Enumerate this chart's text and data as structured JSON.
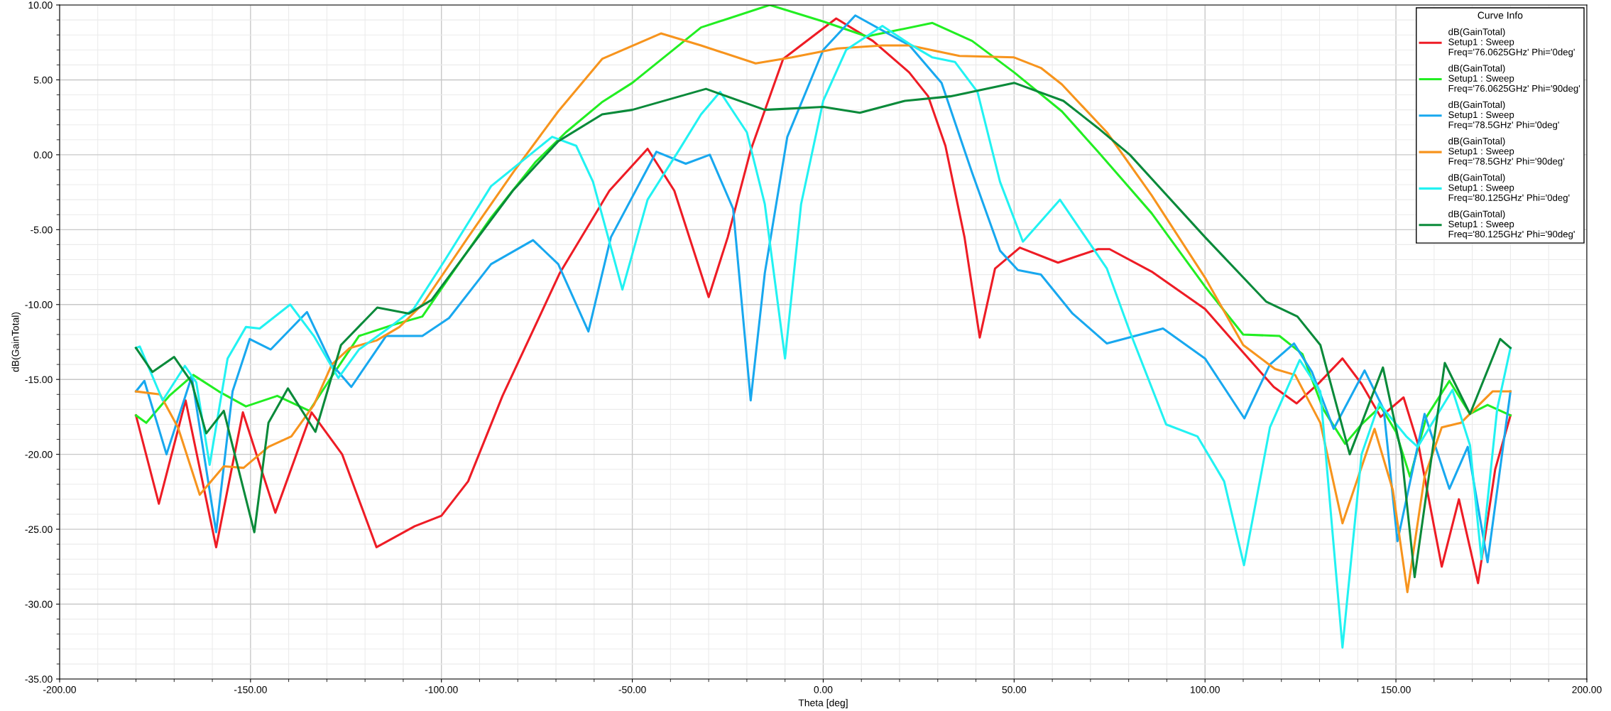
{
  "chart_data": {
    "type": "line",
    "xlabel": "Theta [deg]",
    "ylabel": "dB(GainTotal)",
    "legend_title": "Curve Info",
    "legend": "top right",
    "grid": true,
    "marker": "none",
    "line_style": "solid",
    "xlim": [
      -200,
      200
    ],
    "xticks": [
      {
        "value": -200,
        "label": "-200.00"
      },
      {
        "value": -150,
        "label": "-150.00"
      },
      {
        "value": -100,
        "label": "-100.00"
      },
      {
        "value": -50,
        "label": "-50.00"
      },
      {
        "value": 0,
        "label": "0.00"
      },
      {
        "value": 50,
        "label": "50.00"
      },
      {
        "value": 100,
        "label": "100.00"
      },
      {
        "value": 150,
        "label": "150.00"
      },
      {
        "value": 200,
        "label": "200.00"
      }
    ],
    "ylim": [
      -35,
      10
    ],
    "yticks": [
      {
        "value": -35,
        "label": "-35.00"
      },
      {
        "value": -30,
        "label": "-30.00"
      },
      {
        "value": -25,
        "label": "-25.00"
      },
      {
        "value": -20,
        "label": "-20.00"
      },
      {
        "value": -15,
        "label": "-15.00"
      },
      {
        "value": -10,
        "label": "-10.00"
      },
      {
        "value": -5,
        "label": "-5.00"
      },
      {
        "value": 0,
        "label": "0.00"
      },
      {
        "value": 5,
        "label": "5.00"
      },
      {
        "value": 10,
        "label": "10.00"
      }
    ],
    "series": [
      {
        "name": "dB(GainTotal)\nSetup1 : Sweep\nFreq='76.0625GHz' Phi='0deg'",
        "color": "#ee1c25",
        "x": [
          -180,
          -174,
          -167,
          -159,
          -152,
          -143.5,
          -134,
          -126,
          -117,
          -107,
          -100,
          -93,
          -84,
          -69,
          -56,
          -46,
          -39,
          -30,
          -25,
          -19,
          -10.5,
          3.4,
          13,
          22.5,
          27.5,
          32,
          37,
          41,
          45,
          51.5,
          61.5,
          72,
          75,
          86,
          100,
          110,
          118,
          124,
          130,
          136,
          141,
          146,
          152,
          156,
          162,
          166.5,
          171.5,
          176,
          180
        ],
        "values": [
          -17.4,
          -23.3,
          -16.4,
          -26.2,
          -17.2,
          -23.9,
          -17.2,
          -20,
          -26.2,
          -24.8,
          -24.1,
          -21.8,
          -16.1,
          -7.9,
          -2.4,
          0.4,
          -2.4,
          -9.5,
          -5.5,
          0.3,
          6.4,
          9.1,
          7.6,
          5.5,
          3.9,
          0.6,
          -5.5,
          -12.2,
          -7.6,
          -6.2,
          -7.2,
          -6.3,
          -6.3,
          -7.8,
          -10.3,
          -13.2,
          -15.5,
          -16.6,
          -15.2,
          -13.6,
          -15.3,
          -17.5,
          -16.2,
          -19.5,
          -27.5,
          -23,
          -28.6,
          -21,
          -17.4
        ]
      },
      {
        "name": "dB(GainTotal)\nSetup1 : Sweep\nFreq='76.0625GHz' Phi='90deg'",
        "color": "#22ee22",
        "x": [
          -180,
          -177.3,
          -171.3,
          -165,
          -158.3,
          -151.2,
          -143,
          -134.6,
          -128.7,
          -121.6,
          -112,
          -105,
          -98,
          -87,
          -75.4,
          -67.4,
          -58,
          -50,
          -32,
          -14,
          0,
          11.4,
          28.6,
          39,
          50,
          62.5,
          72,
          86,
          100,
          110,
          119.5,
          125.5,
          131,
          136.7,
          141,
          146,
          150,
          153.7,
          158,
          164,
          169.4,
          174,
          180
        ],
        "values": [
          -17.4,
          -17.9,
          -16.1,
          -14.7,
          -15.8,
          -16.8,
          -16.1,
          -17.1,
          -14.8,
          -12.1,
          -11.3,
          -10.8,
          -8.2,
          -4.2,
          -0.5,
          1.5,
          3.5,
          4.8,
          8.5,
          10,
          8.9,
          7.9,
          8.8,
          7.6,
          5.5,
          2.9,
          0.2,
          -3.9,
          -8.8,
          -12,
          -12.1,
          -13.3,
          -17,
          -19.3,
          -18,
          -16.8,
          -18.5,
          -21.5,
          -17.5,
          -15.1,
          -17.3,
          -16.7,
          -17.4
        ]
      },
      {
        "name": "dB(GainTotal)\nSetup1 : Sweep\nFreq='78.5GHz' Phi='0deg'",
        "color": "#18a8ef",
        "x": [
          -180,
          -177.8,
          -172,
          -165.4,
          -159,
          -154.7,
          -150.2,
          -144.7,
          -135.2,
          -128.7,
          -123.6,
          -114.5,
          -105,
          -98,
          -87,
          -76,
          -69.4,
          -61.5,
          -55.6,
          -43.7,
          -36,
          -29.7,
          -23.6,
          -19,
          -15.3,
          -9.4,
          0,
          8.4,
          22.6,
          31,
          39,
          46.3,
          51,
          57,
          65.3,
          74.3,
          89,
          100,
          110.3,
          117,
          123.3,
          128,
          133.7,
          141.8,
          146.8,
          150.4,
          157.5,
          164,
          168.8,
          174,
          180
        ],
        "values": [
          -15.8,
          -15.1,
          -20,
          -14.8,
          -25.2,
          -15.8,
          -12.3,
          -13,
          -10.5,
          -14,
          -15.5,
          -12.1,
          -12.1,
          -10.9,
          -7.3,
          -5.7,
          -7.3,
          -11.8,
          -5.5,
          0.2,
          -0.6,
          0,
          -3.6,
          -16.4,
          -7.9,
          1.2,
          7,
          9.3,
          7.3,
          4.8,
          -1.2,
          -6.4,
          -7.7,
          -8,
          -10.6,
          -12.6,
          -11.6,
          -13.6,
          -17.6,
          -14,
          -12.6,
          -14.5,
          -18.3,
          -14.4,
          -17,
          -25.8,
          -17.3,
          -22.3,
          -19.5,
          -27.2,
          -15.8
        ]
      },
      {
        "name": "dB(GainTotal)\nSetup1 : Sweep\nFreq='78.5GHz' Phi='90deg'",
        "color": "#f7941d",
        "x": [
          -180,
          -173.7,
          -169,
          -163.3,
          -157,
          -151.8,
          -145.3,
          -139.3,
          -133.4,
          -128.7,
          -124,
          -117,
          -111,
          -105,
          -93,
          -81,
          -69.4,
          -57.9,
          -42.5,
          -32,
          -17.7,
          -8.2,
          3.7,
          15.5,
          22.6,
          35.7,
          50,
          57,
          62.5,
          74.3,
          86,
          100,
          110,
          118.3,
          123.6,
          130.2,
          136,
          144.4,
          149.2,
          153,
          157.5,
          162,
          167,
          175.3,
          180
        ],
        "values": [
          -15.8,
          -16,
          -18.2,
          -22.7,
          -20.8,
          -20.9,
          -19.5,
          -18.8,
          -16.7,
          -14,
          -12.9,
          -12.4,
          -11.5,
          -10,
          -5.5,
          -1.1,
          2.9,
          6.4,
          8.1,
          7.3,
          6.1,
          6.5,
          7.1,
          7.3,
          7.3,
          6.6,
          6.5,
          5.8,
          4.7,
          1.5,
          -2.7,
          -8.2,
          -12.7,
          -14.3,
          -14.7,
          -17.9,
          -24.6,
          -18.3,
          -22.4,
          -29.2,
          -21.5,
          -18.2,
          -17.9,
          -15.8,
          -15.8
        ]
      },
      {
        "name": "dB(GainTotal)\nSetup1 : Sweep\nFreq='80.125GHz' Phi='0deg'",
        "color": "#22f2f2",
        "x": [
          -180,
          -179,
          -173,
          -167.2,
          -164.2,
          -160.7,
          -156,
          -151.2,
          -147.6,
          -139.6,
          -133.4,
          -127,
          -121.6,
          -114.5,
          -107.3,
          -99,
          -87,
          -71,
          -64.7,
          -60.3,
          -52.6,
          -46,
          -37.8,
          -32,
          -27,
          -20,
          -15.3,
          -10,
          -5.8,
          0,
          6,
          15.5,
          22.6,
          28.6,
          34.5,
          40.4,
          46.3,
          52.3,
          62,
          74.3,
          80.3,
          89.8,
          98,
          105,
          110.2,
          117,
          124.8,
          130.2,
          136,
          141,
          145.6,
          152.7,
          155.7,
          164.8,
          169.4,
          172.4,
          176.5,
          180
        ],
        "values": [
          -12.9,
          -12.8,
          -16.4,
          -14.1,
          -15.2,
          -20.7,
          -13.6,
          -11.5,
          -11.6,
          -10,
          -12.1,
          -14.9,
          -13,
          -11.7,
          -10.3,
          -7,
          -2.1,
          1.2,
          0.6,
          -1.8,
          -9,
          -3,
          0.3,
          2.7,
          4.2,
          1.5,
          -3.3,
          -13.6,
          -3.3,
          3.6,
          7,
          8.6,
          7.4,
          6.5,
          6.2,
          4.2,
          -1.8,
          -5.8,
          -3,
          -7.6,
          -11.8,
          -18,
          -18.8,
          -21.8,
          -27.4,
          -18.2,
          -13.7,
          -15.8,
          -32.9,
          -20,
          -16.6,
          -18.8,
          -19.5,
          -15.7,
          -19.4,
          -27,
          -17,
          -12.9
        ]
      },
      {
        "name": "dB(GainTotal)\nSetup1 : Sweep\nFreq='80.125GHz' Phi='90deg'",
        "color": "#0a8a3a",
        "x": [
          -180,
          -175.7,
          -170,
          -165.4,
          -161.6,
          -157,
          -149,
          -145.3,
          -140.2,
          -133,
          -126.3,
          -116.8,
          -108.5,
          -102.6,
          -93,
          -81.3,
          -69.4,
          -57.9,
          -50,
          -30.7,
          -15.3,
          0,
          9.6,
          21.4,
          33.3,
          50,
          62.9,
          71.9,
          80.3,
          100,
          116,
          124.2,
          130.2,
          137.9,
          146.6,
          151.5,
          154.9,
          162.8,
          169.4,
          177.3,
          180
        ],
        "values": [
          -12.9,
          -14.5,
          -13.5,
          -15.2,
          -18.6,
          -17.1,
          -25.2,
          -17.9,
          -15.6,
          -18.5,
          -12.7,
          -10.2,
          -10.6,
          -9.7,
          -6.4,
          -2.4,
          0.9,
          2.7,
          3,
          4.4,
          3,
          3.2,
          2.8,
          3.6,
          3.9,
          4.8,
          3.6,
          1.8,
          0,
          -5.5,
          -9.8,
          -10.8,
          -12.7,
          -20,
          -14.2,
          -20,
          -28.2,
          -13.9,
          -17.3,
          -12.3,
          -12.9
        ]
      }
    ]
  }
}
